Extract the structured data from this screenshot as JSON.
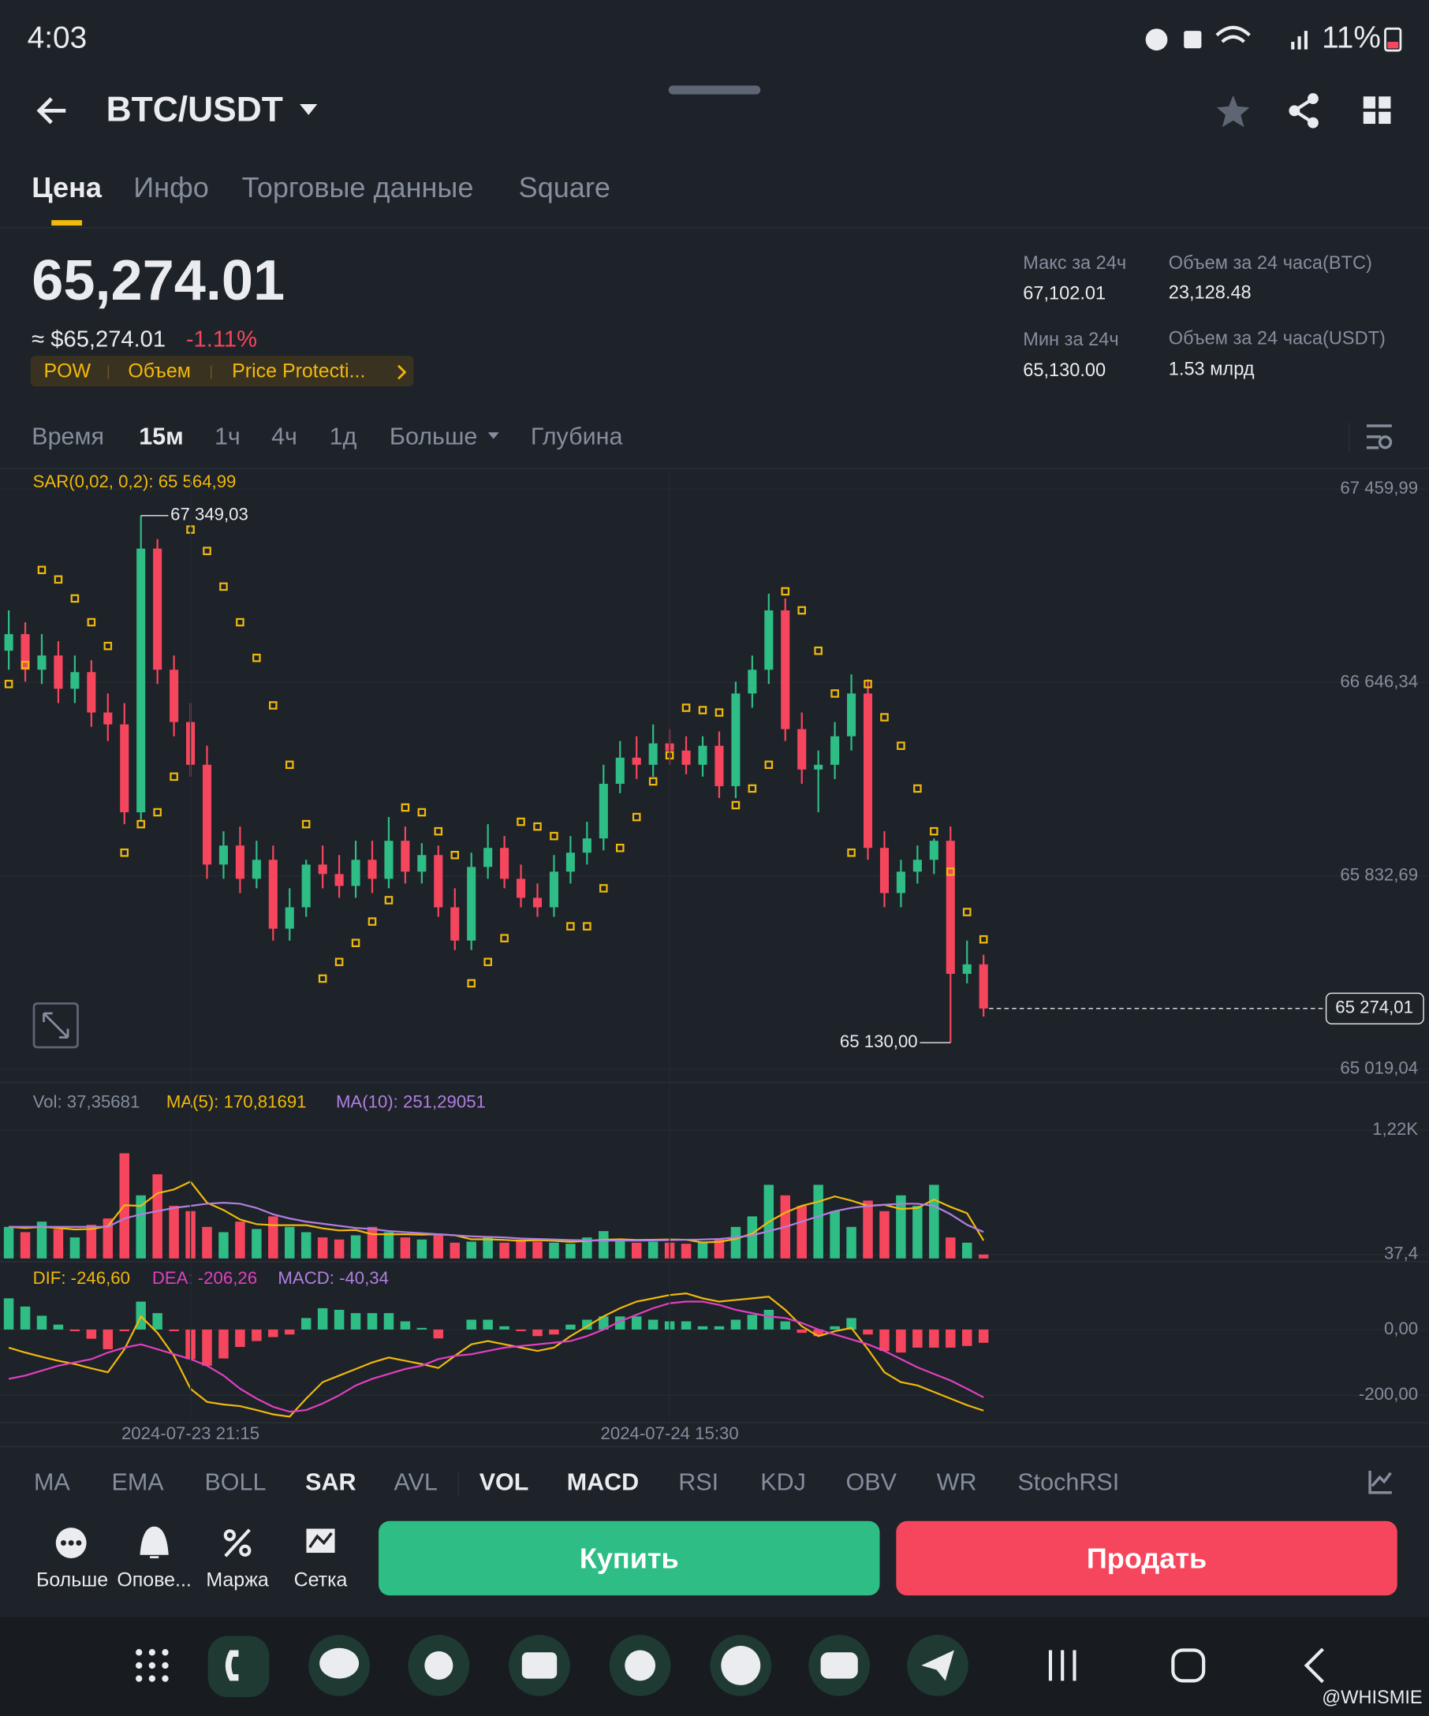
{
  "status_bar": {
    "time": "4:03",
    "battery": "11%"
  },
  "header": {
    "pair": "BTC/USDT"
  },
  "tabs": [
    "Цена",
    "Инфо",
    "Торговые данные",
    "Square"
  ],
  "price": {
    "last": "65,274.01",
    "usd": "≈ $65,274.01",
    "change": "-1.11%",
    "tags": [
      "POW",
      "Объем",
      "Price Protecti..."
    ]
  },
  "stats": [
    {
      "label": "Макс за 24ч",
      "value": "67,102.01"
    },
    {
      "label": "Объем за 24 часа(BTC)",
      "value": "23,128.48"
    },
    {
      "label": "Мин за 24ч",
      "value": "65,130.00"
    },
    {
      "label": "Объем за 24 часа(USDT)",
      "value": "1.53 млрд"
    }
  ],
  "intervals": [
    "Время",
    "15м",
    "1ч",
    "4ч",
    "1д",
    "Больше",
    "Глубина"
  ],
  "chart_data": [
    {
      "type": "candlestick",
      "up_color": "#2ebd85",
      "down_color": "#f6465d",
      "open": [
        66780,
        66850,
        66700,
        66760,
        66620,
        66690,
        66520,
        66470,
        66100,
        67210,
        66700,
        66480,
        66300,
        65880,
        65960,
        65820,
        65900,
        65610,
        65700,
        65880,
        65840,
        65790,
        65900,
        65820,
        65980,
        65850,
        65920,
        65700,
        65560,
        65870,
        65950,
        65820,
        65740,
        65700,
        65850,
        65930,
        65990,
        66220,
        66330,
        66300,
        66390,
        66360,
        66300,
        66380,
        66210,
        66600,
        66700,
        66950,
        66450,
        66280,
        66300,
        66420,
        66600,
        65950,
        65760,
        65850,
        65900,
        65980,
        65420,
        65460
      ],
      "high": [
        66950,
        66900,
        66850,
        66820,
        66760,
        66740,
        66600,
        66560,
        67349.03,
        67250,
        66760,
        66560,
        66380,
        66020,
        66040,
        65980,
        65960,
        65780,
        65900,
        65960,
        65920,
        65980,
        65980,
        66080,
        66040,
        65970,
        65960,
        65780,
        65930,
        66050,
        66000,
        65880,
        65800,
        65920,
        66000,
        66060,
        66300,
        66400,
        66420,
        66470,
        66450,
        66420,
        66420,
        66440,
        66650,
        66760,
        67020,
        67000,
        66520,
        66360,
        66480,
        66680,
        66660,
        66020,
        65900,
        65960,
        65990,
        66040,
        65560,
        65500
      ],
      "low": [
        66700,
        66650,
        66640,
        66560,
        66560,
        66460,
        66400,
        66050,
        66060,
        66640,
        66420,
        66250,
        65820,
        65820,
        65760,
        65780,
        65560,
        65560,
        65660,
        65780,
        65740,
        65740,
        65760,
        65780,
        65800,
        65800,
        65660,
        65520,
        65520,
        65820,
        65780,
        65700,
        65660,
        65660,
        65800,
        65880,
        65940,
        66180,
        66240,
        66250,
        66300,
        66260,
        66250,
        66160,
        66160,
        66540,
        66640,
        66400,
        66220,
        66100,
        66240,
        66360,
        65900,
        65700,
        65700,
        65800,
        65840,
        65130,
        65380,
        65240
      ],
      "close": [
        66850,
        66700,
        66760,
        66620,
        66690,
        66520,
        66470,
        66100,
        67210,
        66700,
        66480,
        66300,
        65880,
        65960,
        65820,
        65900,
        65610,
        65700,
        65880,
        65840,
        65790,
        65900,
        65820,
        65980,
        65850,
        65920,
        65700,
        65560,
        65870,
        65950,
        65820,
        65740,
        65700,
        65850,
        65930,
        65990,
        66220,
        66330,
        66300,
        66390,
        66360,
        66300,
        66380,
        66210,
        66600,
        66700,
        66950,
        66450,
        66280,
        66300,
        66420,
        66600,
        65950,
        65760,
        65850,
        65900,
        65980,
        65420,
        65460,
        65274.01
      ],
      "series": [
        {
          "name": "SAR(0,02, 0,2): 65 564,99",
          "color": "#f0b90b",
          "values": [
            66640,
            66720,
            67120,
            67080,
            67000,
            66900,
            66800,
            65930,
            66050,
            66100,
            66250,
            67290,
            67200,
            67050,
            66900,
            66750,
            66550,
            66300,
            66050,
            65400,
            65470,
            65550,
            65640,
            65730,
            66120,
            66100,
            66020,
            65920,
            65380,
            65470,
            65570,
            66060,
            66040,
            66000,
            65620,
            65620,
            65780,
            65950,
            66080,
            66230,
            66340,
            66540,
            66530,
            66520,
            66130,
            66200,
            66300,
            67030,
            66950,
            66780,
            66600,
            65930,
            66640,
            66500,
            66380,
            66200,
            66020,
            65850,
            65680,
            65564.99
          ]
        }
      ],
      "ylim": [
        64968,
        67538
      ],
      "yticks": [
        {
          "value": 67459.99,
          "label": "67 459,99"
        },
        {
          "value": 66646.34,
          "label": "66 646,34"
        },
        {
          "value": 65832.69,
          "label": "65 832,69"
        },
        {
          "value": 65019.04,
          "label": "65 019,04"
        }
      ],
      "high_label": "67 349,03",
      "low_label": "65 130,00",
      "last_label": "65 274,01"
    },
    {
      "type": "bar",
      "series": [
        {
          "name": "Vol: 37,35681",
          "values": [
            300,
            250,
            350,
            280,
            200,
            320,
            380,
            1000,
            600,
            800,
            500,
            450,
            300,
            250,
            350,
            280,
            400,
            300,
            250,
            200,
            180,
            220,
            300,
            250,
            200,
            180,
            220,
            150,
            160,
            200,
            150,
            180,
            160,
            150,
            140,
            200,
            260,
            180,
            150,
            160,
            150,
            140,
            160,
            180,
            300,
            400,
            700,
            600,
            500,
            700,
            450,
            300,
            550,
            450,
            600,
            500,
            700,
            200,
            150,
            37.35681
          ]
        },
        {
          "name": "MA(5): 170,81691",
          "color": "#f0b90b",
          "values": [
            300,
            290,
            300,
            290,
            276,
            280,
            306,
            506,
            500,
            620,
            656,
            730,
            530,
            460,
            370,
            326,
            316,
            316,
            316,
            286,
            266,
            270,
            230,
            230,
            230,
            226,
            230,
            220,
            182,
            182,
            176,
            168,
            174,
            168,
            158,
            166,
            178,
            182,
            176,
            178,
            180,
            178,
            152,
            158,
            186,
            236,
            348,
            436,
            500,
            540,
            590,
            550,
            500,
            510,
            470,
            480,
            560,
            490,
            430,
            170.81691
          ]
        },
        {
          "name": "MA(10): 251,29051",
          "color": "#b07fe0",
          "values": [
            300,
            300,
            300,
            300,
            300,
            300,
            300,
            380,
            420,
            450,
            480,
            500,
            520,
            530,
            520,
            480,
            420,
            380,
            350,
            330,
            310,
            290,
            280,
            260,
            250,
            240,
            230,
            220,
            210,
            205,
            200,
            190,
            185,
            180,
            175,
            172,
            170,
            170,
            170,
            172,
            175,
            178,
            180,
            185,
            200,
            220,
            260,
            300,
            350,
            400,
            450,
            480,
            500,
            510,
            520,
            520,
            500,
            420,
            320,
            251.29051
          ]
        }
      ],
      "ylim": [
        0,
        1300
      ],
      "yticks": [
        {
          "value": 1220,
          "label": "1,22K"
        },
        {
          "value": 37.4,
          "label": "37,4"
        }
      ]
    },
    {
      "type": "macd",
      "categories": [
        null,
        null,
        null,
        null,
        null,
        null,
        null,
        null,
        null,
        null,
        null,
        "2024-07-23 21:15",
        null,
        null,
        null,
        null,
        null,
        null,
        null,
        null,
        null,
        null,
        null,
        null,
        null,
        null,
        null,
        null,
        null,
        null,
        null,
        null,
        null,
        null,
        null,
        null,
        null,
        null,
        null,
        null,
        "2024-07-24 15:30",
        null,
        null,
        null,
        null,
        null,
        null,
        null,
        null,
        null,
        null,
        null,
        null,
        null,
        null,
        null,
        null,
        null,
        null,
        null
      ],
      "series": [
        {
          "name": "DIF: -246,60",
          "color": "#f0b90b",
          "values": [
            -55,
            -70,
            -83,
            -95,
            -105,
            -118,
            -130,
            -60,
            40,
            -10,
            -80,
            -180,
            -220,
            -228,
            -233,
            -245,
            -258,
            -265,
            -210,
            -160,
            -140,
            -120,
            -100,
            -85,
            -95,
            -105,
            -117,
            -80,
            -45,
            -35,
            -45,
            -55,
            -65,
            -55,
            -20,
            10,
            40,
            65,
            85,
            95,
            105,
            110,
            95,
            85,
            90,
            95,
            100,
            60,
            10,
            -20,
            -5,
            5,
            -60,
            -130,
            -160,
            -170,
            -190,
            -210,
            -230,
            -246.6
          ]
        },
        {
          "name": "DEA: -206,26",
          "color": "#e040c0",
          "values": [
            -150,
            -140,
            -125,
            -110,
            -100,
            -90,
            -70,
            -55,
            -45,
            -60,
            -75,
            -90,
            -110,
            -140,
            -180,
            -210,
            -235,
            -250,
            -245,
            -225,
            -200,
            -170,
            -150,
            -135,
            -120,
            -110,
            -90,
            -80,
            -75,
            -65,
            -55,
            -50,
            -45,
            -40,
            -35,
            -20,
            0,
            25,
            45,
            65,
            80,
            85,
            85,
            75,
            60,
            50,
            40,
            35,
            20,
            0,
            -15,
            -30,
            -45,
            -65,
            -90,
            -115,
            -135,
            -155,
            -180,
            -206.26
          ]
        },
        {
          "name": "MACD: -40,34",
          "color": "#b07fe0",
          "values": [
            95,
            70,
            42,
            15,
            -5,
            -28,
            -60,
            -5,
            85,
            50,
            -5,
            -90,
            -110,
            -88,
            -53,
            -35,
            -23,
            -15,
            35,
            65,
            60,
            50,
            50,
            50,
            25,
            5,
            -27,
            0,
            30,
            30,
            10,
            -5,
            -20,
            -15,
            15,
            30,
            40,
            40,
            40,
            30,
            25,
            25,
            10,
            10,
            30,
            45,
            60,
            25,
            -10,
            -20,
            10,
            35,
            -15,
            -65,
            -70,
            -55,
            -55,
            -55,
            -50,
            -40.34
          ]
        }
      ],
      "ylim": [
        -283,
        183
      ],
      "yticks": [
        {
          "value": 0,
          "label": "0,00"
        },
        {
          "value": -200,
          "label": "-200,00"
        }
      ]
    }
  ],
  "indicators": [
    "MA",
    "EMA",
    "BOLL",
    "SAR",
    "AVL",
    "VOL",
    "MACD",
    "RSI",
    "KDJ",
    "OBV",
    "WR",
    "StochRSI"
  ],
  "actions": [
    "Больше",
    "Опове...",
    "Маржа",
    "Сетка"
  ],
  "buttons": {
    "buy": "Купить",
    "sell": "Продать"
  },
  "watermark": "@WHISMIE"
}
